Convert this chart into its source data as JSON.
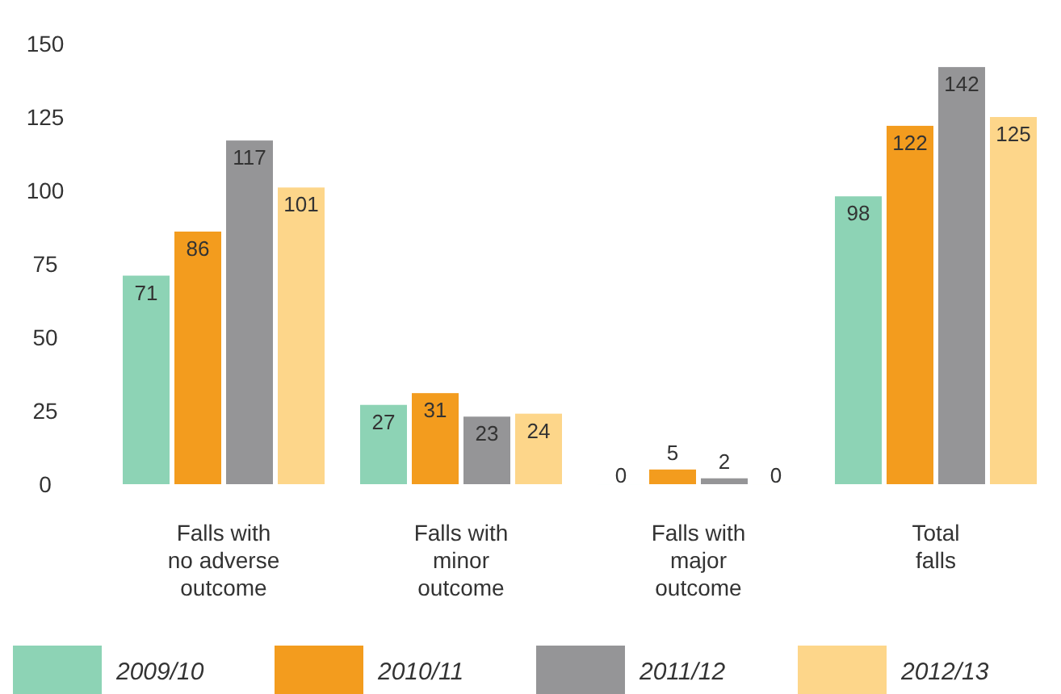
{
  "chart_data": {
    "type": "bar",
    "categories": [
      "Falls with no adverse outcome",
      "Falls with minor outcome",
      "Falls with major outcome",
      "Total falls"
    ],
    "series": [
      {
        "name": "2009/10",
        "color": "#8dd3b5",
        "values": [
          71,
          27,
          0,
          98
        ]
      },
      {
        "name": "2010/11",
        "color": "#f39c1e",
        "values": [
          86,
          31,
          5,
          122
        ]
      },
      {
        "name": "2011/12",
        "color": "#959597",
        "values": [
          117,
          23,
          2,
          142
        ]
      },
      {
        "name": "2012/13",
        "color": "#fdd68a",
        "values": [
          101,
          24,
          0,
          125
        ]
      }
    ],
    "ylim": [
      0,
      150
    ],
    "yticks": [
      0,
      25,
      50,
      75,
      100,
      125,
      150
    ],
    "data_labels": true,
    "legend": "bottom",
    "grid": false
  }
}
